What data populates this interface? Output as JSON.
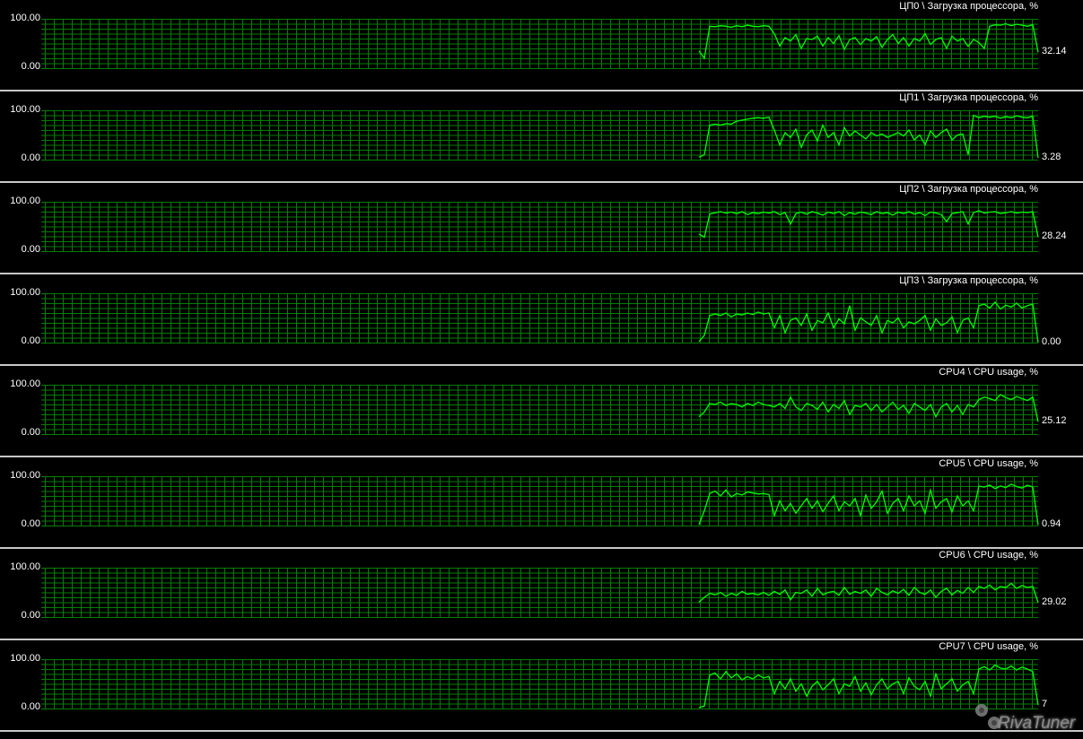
{
  "chart_data": [
    {
      "type": "line",
      "title": "ЦП0 \\ Загрузка процессора, %",
      "ymax_label": "100.00",
      "ymin_label": "0.00",
      "ylim": [
        0,
        100
      ],
      "grid": true,
      "color": "#00ff00",
      "current_label": "32.14",
      "values": [
        35,
        20,
        85,
        84,
        86,
        85,
        83,
        86,
        84,
        87,
        85,
        84,
        86,
        85,
        70,
        45,
        62,
        55,
        68,
        40,
        60,
        58,
        65,
        45,
        62,
        50,
        66,
        38,
        58,
        62,
        48,
        60,
        55,
        64,
        42,
        58,
        68,
        50,
        62,
        45,
        60,
        55,
        70,
        48,
        58,
        62,
        40,
        65,
        55,
        60,
        44,
        58,
        52,
        40,
        85,
        88,
        87,
        90,
        86,
        89,
        87,
        85,
        88,
        32.14
      ]
    },
    {
      "type": "line",
      "title": "ЦП1 \\ Загрузка процессора, %",
      "ymax_label": "100.00",
      "ymin_label": "0.00",
      "ylim": [
        0,
        100
      ],
      "grid": true,
      "color": "#00ff00",
      "current_label": "3.28",
      "values": [
        5,
        10,
        70,
        72,
        70,
        73,
        72,
        78,
        80,
        82,
        84,
        85,
        84,
        86,
        60,
        30,
        55,
        45,
        62,
        25,
        50,
        60,
        38,
        70,
        45,
        55,
        30,
        65,
        48,
        58,
        50,
        42,
        55,
        48,
        52,
        45,
        50,
        55,
        48,
        60,
        40,
        50,
        30,
        58,
        45,
        55,
        62,
        40,
        50,
        52,
        10,
        90,
        85,
        88,
        86,
        88,
        84,
        87,
        85,
        89,
        86,
        85,
        88,
        3.28
      ]
    },
    {
      "type": "line",
      "title": "ЦП2 \\ Загрузка процессора, %",
      "ymax_label": "100.00",
      "ymin_label": "0.00",
      "ylim": [
        0,
        100
      ],
      "grid": true,
      "color": "#00ff00",
      "current_label": "28.24",
      "values": [
        35,
        28,
        75,
        78,
        80,
        77,
        79,
        76,
        80,
        74,
        78,
        76,
        79,
        77,
        80,
        74,
        78,
        55,
        76,
        79,
        75,
        80,
        77,
        73,
        79,
        76,
        80,
        72,
        78,
        75,
        79,
        77,
        74,
        80,
        76,
        78,
        73,
        79,
        76,
        80,
        75,
        78,
        72,
        79,
        77,
        74,
        60,
        76,
        78,
        80,
        55,
        78,
        82,
        77,
        79,
        80,
        76,
        78,
        80,
        77,
        79,
        78,
        80,
        28.24
      ]
    },
    {
      "type": "line",
      "title": "ЦП3 \\ Загрузка процессора, %",
      "ymax_label": "100.00",
      "ymin_label": "0.00",
      "ylim": [
        0,
        100
      ],
      "grid": true,
      "color": "#00ff00",
      "current_label": "0.00",
      "values": [
        2,
        15,
        55,
        58,
        55,
        60,
        52,
        58,
        56,
        60,
        57,
        62,
        58,
        60,
        30,
        55,
        20,
        45,
        50,
        35,
        58,
        25,
        45,
        40,
        60,
        30,
        48,
        38,
        75,
        25,
        50,
        42,
        35,
        55,
        20,
        45,
        40,
        50,
        30,
        42,
        38,
        45,
        55,
        25,
        48,
        35,
        40,
        52,
        20,
        45,
        50,
        30,
        75,
        78,
        70,
        82,
        68,
        76,
        72,
        80,
        70,
        75,
        78,
        0
      ]
    },
    {
      "type": "line",
      "title": "CPU4 \\ CPU usage, %",
      "ymax_label": "100.00",
      "ymin_label": "0.00",
      "ylim": [
        0,
        100
      ],
      "grid": true,
      "color": "#00ff00",
      "current_label": "25.12",
      "values": [
        35,
        45,
        62,
        60,
        65,
        58,
        62,
        60,
        55,
        62,
        58,
        65,
        60,
        58,
        55,
        62,
        52,
        75,
        55,
        48,
        62,
        58,
        50,
        65,
        45,
        60,
        52,
        68,
        40,
        58,
        55,
        62,
        48,
        60,
        45,
        55,
        65,
        50,
        58,
        42,
        62,
        55,
        48,
        60,
        35,
        55,
        62,
        45,
        58,
        40,
        60,
        55,
        70,
        75,
        72,
        68,
        80,
        74,
        70,
        76,
        72,
        68,
        75,
        25.12
      ]
    },
    {
      "type": "line",
      "title": "CPU5 \\ CPU usage, %",
      "ymax_label": "100.00",
      "ymin_label": "0.00",
      "ylim": [
        0,
        100
      ],
      "grid": true,
      "color": "#00ff00",
      "current_label": "0.94",
      "values": [
        2,
        30,
        65,
        70,
        60,
        72,
        58,
        65,
        62,
        68,
        66,
        64,
        65,
        63,
        20,
        50,
        30,
        45,
        25,
        40,
        55,
        35,
        50,
        28,
        45,
        60,
        30,
        48,
        40,
        55,
        20,
        62,
        35,
        48,
        70,
        25,
        45,
        55,
        30,
        60,
        40,
        50,
        25,
        72,
        35,
        48,
        55,
        28,
        60,
        40,
        50,
        30,
        80,
        78,
        82,
        75,
        80,
        77,
        84,
        79,
        76,
        82,
        78,
        0.94
      ]
    },
    {
      "type": "line",
      "title": "CPU6 \\ CPU usage, %",
      "ymax_label": "100.00",
      "ymin_label": "0.00",
      "ylim": [
        0,
        100
      ],
      "grid": true,
      "color": "#00ff00",
      "current_label": "29.02",
      "values": [
        30,
        40,
        48,
        45,
        50,
        42,
        48,
        44,
        52,
        46,
        48,
        45,
        50,
        44,
        52,
        46,
        55,
        35,
        50,
        48,
        55,
        42,
        58,
        45,
        50,
        52,
        44,
        60,
        46,
        52,
        48,
        55,
        42,
        58,
        50,
        45,
        53,
        48,
        56,
        44,
        60,
        50,
        46,
        55,
        40,
        52,
        58,
        45,
        54,
        48,
        60,
        50,
        62,
        58,
        65,
        55,
        62,
        60,
        68,
        58,
        64,
        60,
        62,
        29.02
      ]
    },
    {
      "type": "line",
      "title": "CPU7 \\ CPU usage, %",
      "ymax_label": "100.00",
      "ymin_label": "0.00",
      "ylim": [
        0,
        100
      ],
      "grid": true,
      "color": "#00ff00",
      "current_label": "7",
      "values": [
        2,
        5,
        68,
        72,
        60,
        75,
        62,
        70,
        58,
        65,
        60,
        68,
        62,
        65,
        30,
        55,
        40,
        60,
        35,
        50,
        25,
        45,
        55,
        38,
        48,
        60,
        30,
        50,
        45,
        65,
        35,
        52,
        28,
        48,
        60,
        40,
        50,
        55,
        30,
        62,
        45,
        38,
        55,
        25,
        70,
        40,
        50,
        60,
        35,
        48,
        55,
        30,
        80,
        85,
        78,
        88,
        82,
        80,
        86,
        78,
        84,
        80,
        75,
        7
      ]
    }
  ],
  "colors": {
    "background": "#000000",
    "grid": "#008000",
    "line": "#00ff00",
    "separator": "#c8c8c8",
    "text": "#ffffff"
  },
  "watermark": {
    "logo_text": "RivaTuner",
    "icon": "gears-icon"
  }
}
